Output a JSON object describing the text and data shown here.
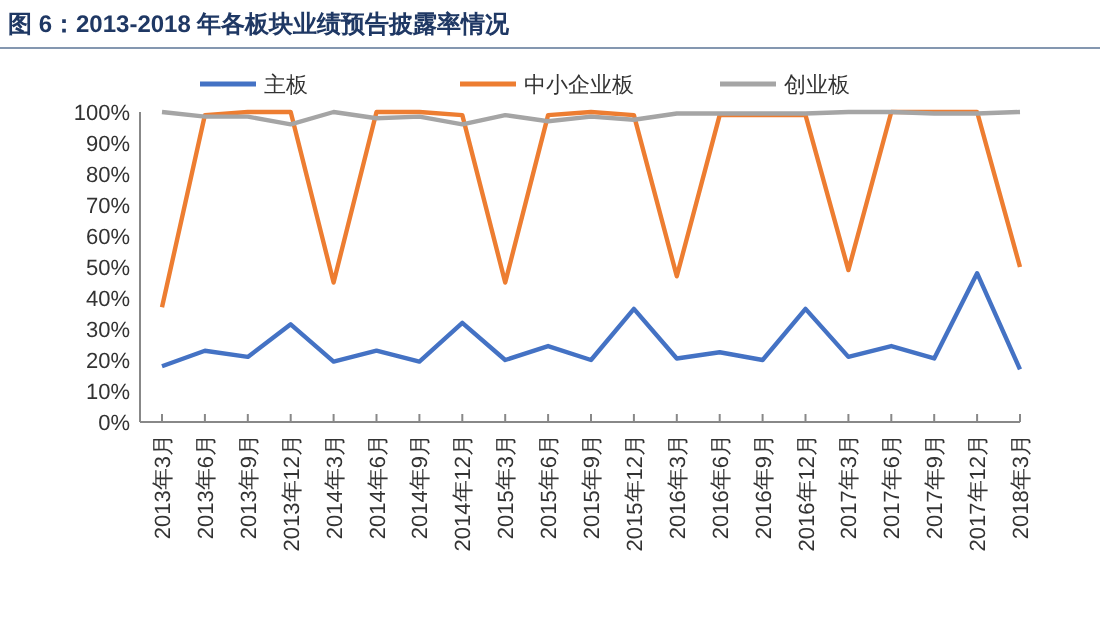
{
  "chart_data": {
    "type": "line",
    "title": "图 6：2013-2018 年各板块业绩预告披露率情况",
    "categories": [
      "2013年3月",
      "2013年6月",
      "2013年9月",
      "2013年12月",
      "2014年3月",
      "2014年6月",
      "2014年9月",
      "2014年12月",
      "2015年3月",
      "2015年6月",
      "2015年9月",
      "2015年12月",
      "2016年3月",
      "2016年6月",
      "2016年9月",
      "2016年12月",
      "2017年3月",
      "2017年6月",
      "2017年9月",
      "2017年12月",
      "2018年3月"
    ],
    "series": [
      {
        "name": "主板",
        "color": "#4472c4",
        "values": [
          18,
          23,
          21,
          31.5,
          19.5,
          23,
          19.5,
          32,
          20,
          24.5,
          20,
          36.5,
          20.5,
          22.5,
          20,
          36.5,
          21,
          24.5,
          20.5,
          48,
          17
        ]
      },
      {
        "name": "中小企业板",
        "color": "#ed7d31",
        "values": [
          37,
          99,
          100,
          100,
          45,
          100,
          100,
          99,
          45,
          99,
          100,
          99,
          47,
          99,
          99,
          99,
          49,
          100,
          100,
          100,
          50
        ]
      },
      {
        "name": "创业板",
        "color": "#a5a5a5",
        "values": [
          100,
          98.5,
          98.5,
          96,
          100,
          98,
          98.5,
          96,
          99,
          97,
          98.5,
          97.5,
          99.5,
          99.5,
          99.5,
          99.5,
          100,
          100,
          99.5,
          99.5,
          100
        ]
      }
    ],
    "ylim": [
      0,
      100
    ],
    "yticks": [
      {
        "value": 0,
        "label": "0%"
      },
      {
        "value": 10,
        "label": "10%"
      },
      {
        "value": 20,
        "label": "20%"
      },
      {
        "value": 30,
        "label": "30%"
      },
      {
        "value": 40,
        "label": "40%"
      },
      {
        "value": 50,
        "label": "50%"
      },
      {
        "value": 60,
        "label": "60%"
      },
      {
        "value": 70,
        "label": "70%"
      },
      {
        "value": 80,
        "label": "80%"
      },
      {
        "value": 90,
        "label": "90%"
      },
      {
        "value": 100,
        "label": "100%"
      }
    ],
    "legend": "top",
    "grid": false,
    "marker": "none",
    "line_style": "solid"
  }
}
